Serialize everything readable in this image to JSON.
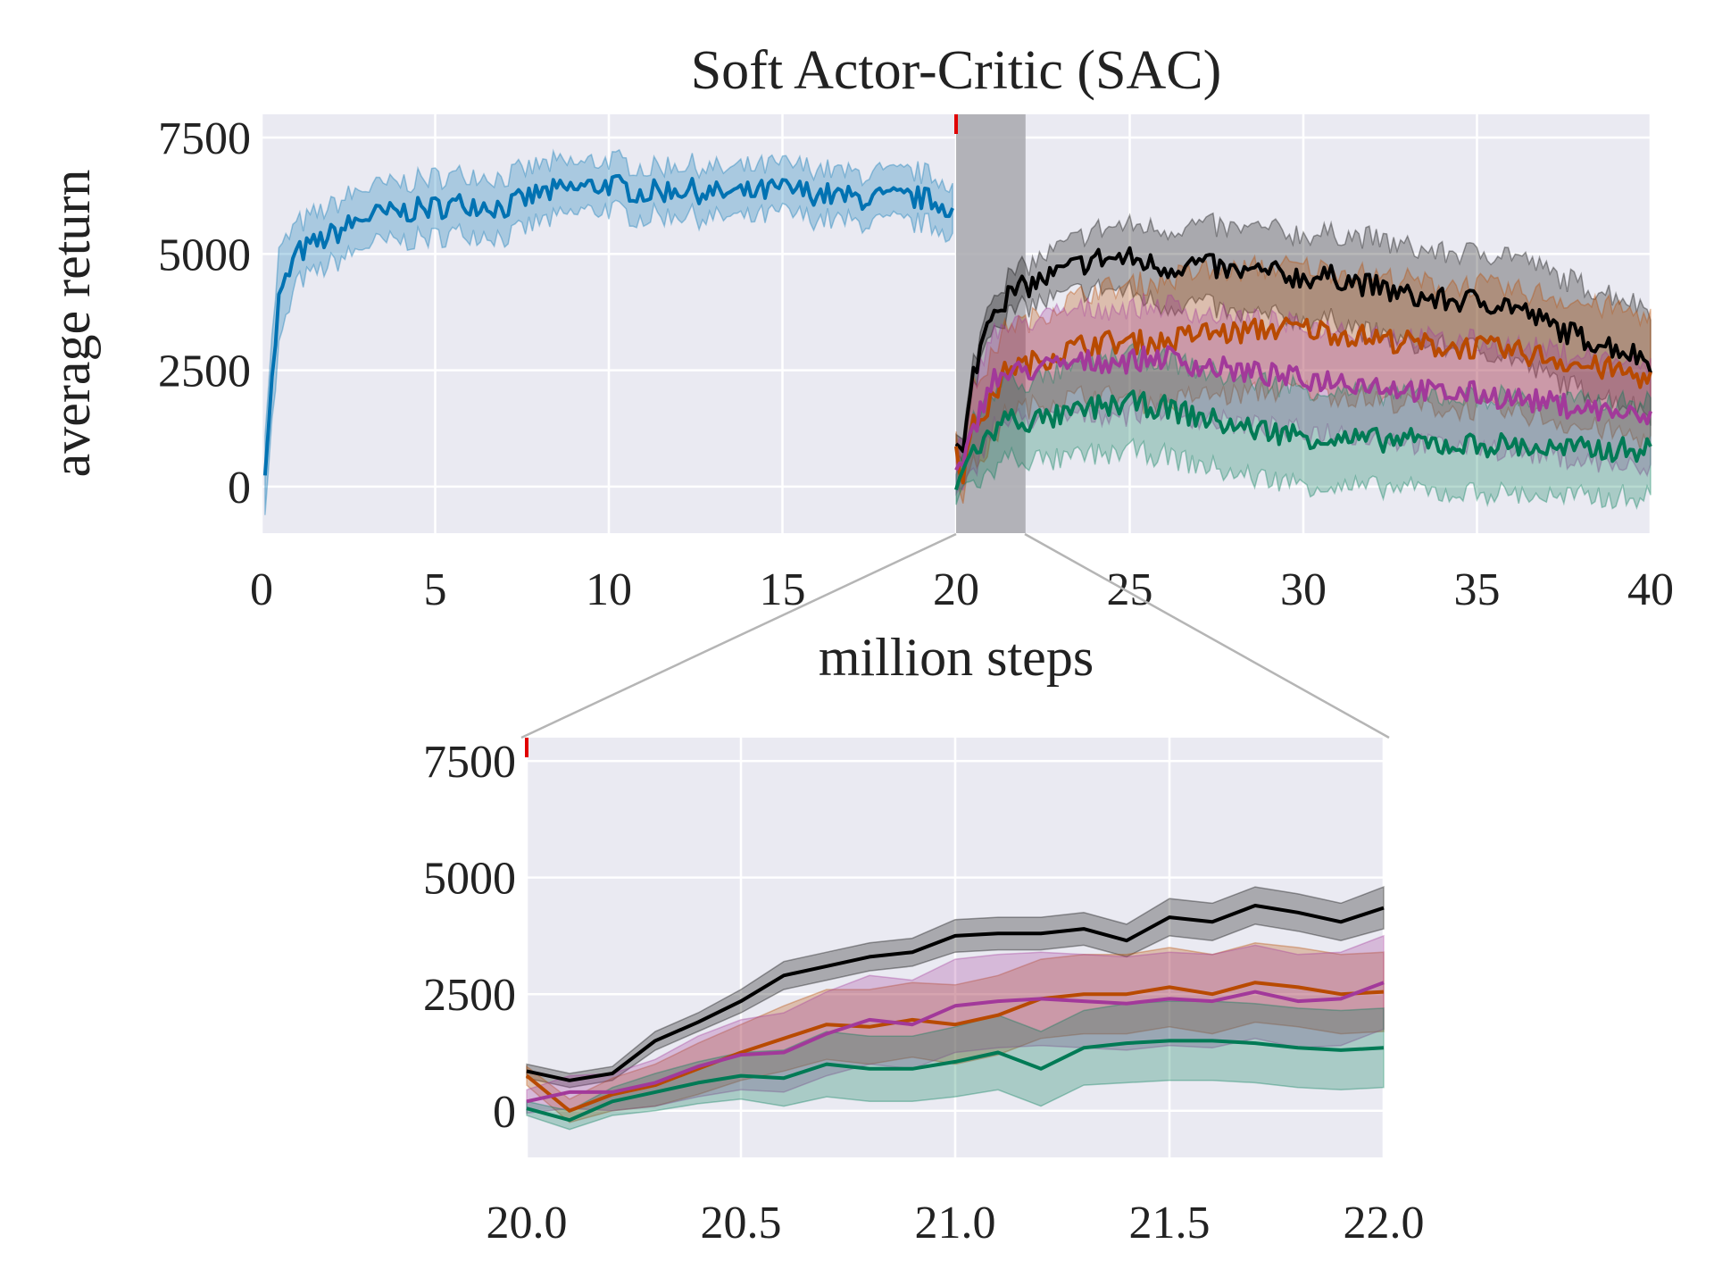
{
  "chart_data": [
    {
      "type": "line",
      "title": "Soft Actor-Critic (SAC)",
      "xlabel": "million steps",
      "ylabel": "average return",
      "xlim": [
        0,
        40
      ],
      "ylim": [
        -1000,
        8000
      ],
      "xticks": [
        "0",
        "5",
        "10",
        "15",
        "20",
        "25",
        "30",
        "35",
        "40"
      ],
      "yticks": [
        "0",
        "2500",
        "5000",
        "7500"
      ],
      "grid": true,
      "highlight_span": [
        20,
        22
      ],
      "colors": {
        "pretrain": "#0072b2",
        "black": "#000000",
        "orange": "#b84a00",
        "magenta": "#a2399a",
        "green": "#007a55",
        "shade": "#a8a8ae",
        "marker": "#e00000",
        "background": "#eaeaf2"
      },
      "series": [
        {
          "color": "#0072b2",
          "x": [
            0.1,
            0.5,
            1,
            2,
            3,
            4,
            5,
            6,
            7,
            8,
            9,
            10,
            11,
            12,
            13,
            14,
            15,
            16,
            17,
            18,
            19,
            19.9
          ],
          "y": [
            500,
            4000,
            5000,
            5400,
            5800,
            5900,
            6000,
            6100,
            6000,
            6300,
            6400,
            6500,
            6300,
            6400,
            6300,
            6300,
            6400,
            6300,
            6200,
            6200,
            6200,
            6000
          ],
          "band": [
            800,
            1000,
            600,
            600,
            600,
            600,
            600,
            600,
            600,
            600,
            500,
            500,
            500,
            500,
            500,
            500,
            500,
            500,
            500,
            500,
            500,
            500
          ]
        },
        {
          "color": "#000000",
          "x": [
            20,
            20.2,
            20.5,
            21,
            21.5,
            22,
            23,
            24,
            25,
            26,
            27,
            28,
            29,
            30,
            31,
            32,
            33,
            34,
            35,
            36,
            37,
            38,
            39,
            40
          ],
          "y": [
            800,
            700,
            2400,
            3800,
            4100,
            4300,
            4600,
            4900,
            4900,
            4700,
            4800,
            4600,
            4600,
            4500,
            4500,
            4300,
            4100,
            4000,
            4000,
            3900,
            3500,
            3200,
            3000,
            2700
          ],
          "band": [
            200,
            200,
            250,
            300,
            350,
            400,
            500,
            600,
            700,
            800,
            800,
            900,
            900,
            900,
            900,
            1000,
            1000,
            1000,
            1000,
            1100,
            1100,
            1100,
            1100,
            1100
          ]
        },
        {
          "color": "#b84a00",
          "x": [
            20,
            20.2,
            20.5,
            21,
            21.5,
            22,
            23,
            24,
            25,
            26,
            27,
            28,
            29,
            30,
            31,
            32,
            33,
            34,
            35,
            36,
            37,
            38,
            39,
            40
          ],
          "y": [
            800,
            300,
            1300,
            1800,
            2600,
            2600,
            2900,
            3100,
            3100,
            3100,
            3300,
            3300,
            3400,
            3400,
            3300,
            3200,
            3100,
            3000,
            3000,
            2900,
            2800,
            2600,
            2500,
            2300
          ],
          "band": [
            300,
            400,
            800,
            900,
            900,
            900,
            1000,
            1100,
            1200,
            1300,
            1300,
            1300,
            1300,
            1300,
            1300,
            1300,
            1300,
            1300,
            1300,
            1300,
            1300,
            1300,
            1300,
            1300
          ]
        },
        {
          "color": "#a2399a",
          "x": [
            20,
            20.2,
            20.5,
            21,
            21.5,
            22,
            23,
            24,
            25,
            26,
            27,
            28,
            29,
            30,
            31,
            32,
            33,
            34,
            35,
            36,
            37,
            38,
            39,
            40
          ],
          "y": [
            300,
            400,
            1200,
            2300,
            2400,
            2500,
            2600,
            2700,
            2700,
            2800,
            2600,
            2500,
            2400,
            2300,
            2300,
            2200,
            2100,
            2000,
            2000,
            1900,
            1800,
            1700,
            1600,
            1400
          ],
          "band": [
            500,
            500,
            900,
            1000,
            1000,
            1000,
            1100,
            1100,
            1100,
            1100,
            1100,
            1100,
            1100,
            1100,
            1100,
            1100,
            1100,
            1100,
            1100,
            1100,
            1100,
            1100,
            1100,
            1100
          ]
        },
        {
          "color": "#007a55",
          "x": [
            20,
            20.2,
            20.5,
            21,
            21.5,
            22,
            23,
            24,
            25,
            26,
            27,
            28,
            29,
            30,
            31,
            32,
            33,
            34,
            35,
            36,
            37,
            38,
            39,
            40
          ],
          "y": [
            100,
            300,
            800,
            1100,
            1500,
            1400,
            1500,
            1700,
            1800,
            1700,
            1500,
            1300,
            1200,
            1100,
            1000,
            1000,
            1000,
            900,
            900,
            900,
            800,
            800,
            800,
            800
          ],
          "band": [
            300,
            300,
            700,
            800,
            800,
            800,
            900,
            1000,
            1000,
            1000,
            1000,
            1000,
            1000,
            1000,
            1000,
            1000,
            1000,
            1000,
            1000,
            1000,
            1000,
            1000,
            1000,
            1000
          ]
        }
      ]
    },
    {
      "type": "line",
      "xlim": [
        20,
        22
      ],
      "ylim": [
        -1000,
        8000
      ],
      "xticks": [
        "20.0",
        "20.5",
        "21.0",
        "21.5",
        "22.0"
      ],
      "yticks": [
        "0",
        "2500",
        "5000",
        "7500"
      ],
      "grid": true,
      "series": [
        {
          "color": "#000000",
          "x": [
            20,
            20.1,
            20.2,
            20.3,
            20.4,
            20.5,
            20.6,
            20.7,
            20.8,
            20.9,
            21,
            21.1,
            21.2,
            21.3,
            21.4,
            21.5,
            21.6,
            21.7,
            21.8,
            21.9,
            22
          ],
          "y": [
            850,
            650,
            800,
            1500,
            1900,
            2350,
            2900,
            3100,
            3300,
            3400,
            3750,
            3800,
            3800,
            3900,
            3650,
            4150,
            4050,
            4400,
            4250,
            4050,
            4350
          ],
          "band": [
            150,
            150,
            150,
            200,
            200,
            250,
            300,
            300,
            300,
            300,
            350,
            350,
            350,
            350,
            350,
            400,
            400,
            400,
            400,
            400,
            450
          ]
        },
        {
          "color": "#b84a00",
          "x": [
            20,
            20.1,
            20.2,
            20.3,
            20.4,
            20.5,
            20.6,
            20.7,
            20.8,
            20.9,
            21,
            21.1,
            21.2,
            21.3,
            21.4,
            21.5,
            21.6,
            21.7,
            21.8,
            21.9,
            22
          ],
          "y": [
            750,
            0,
            350,
            550,
            900,
            1250,
            1550,
            1850,
            1800,
            1950,
            1850,
            2050,
            2400,
            2500,
            2500,
            2650,
            2500,
            2750,
            2650,
            2500,
            2550
          ],
          "band": [
            200,
            250,
            350,
            450,
            550,
            600,
            700,
            750,
            800,
            800,
            850,
            850,
            850,
            850,
            850,
            850,
            850,
            850,
            850,
            850,
            850
          ]
        },
        {
          "color": "#a2399a",
          "x": [
            20,
            20.1,
            20.2,
            20.3,
            20.4,
            20.5,
            20.6,
            20.7,
            20.8,
            20.9,
            21,
            21.1,
            21.2,
            21.3,
            21.4,
            21.5,
            21.6,
            21.7,
            21.8,
            21.9,
            22
          ],
          "y": [
            200,
            400,
            400,
            600,
            950,
            1200,
            1250,
            1650,
            1950,
            1850,
            2250,
            2350,
            2400,
            2350,
            2300,
            2400,
            2350,
            2550,
            2350,
            2400,
            2750
          ],
          "band": [
            250,
            350,
            400,
            500,
            650,
            750,
            850,
            900,
            950,
            950,
            1000,
            1000,
            1000,
            1000,
            1000,
            1000,
            1000,
            1000,
            1000,
            1000,
            1000
          ]
        },
        {
          "color": "#007a55",
          "x": [
            20,
            20.1,
            20.2,
            20.3,
            20.4,
            20.5,
            20.6,
            20.7,
            20.8,
            20.9,
            21,
            21.1,
            21.2,
            21.3,
            21.4,
            21.5,
            21.6,
            21.7,
            21.8,
            21.9,
            22
          ],
          "y": [
            50,
            -200,
            200,
            400,
            600,
            750,
            700,
            1000,
            900,
            900,
            1050,
            1250,
            900,
            1350,
            1450,
            1500,
            1500,
            1450,
            1350,
            1300,
            1350
          ],
          "band": [
            150,
            200,
            300,
            400,
            450,
            500,
            600,
            700,
            700,
            700,
            750,
            800,
            800,
            800,
            850,
            850,
            850,
            850,
            850,
            850,
            850
          ]
        }
      ]
    }
  ]
}
